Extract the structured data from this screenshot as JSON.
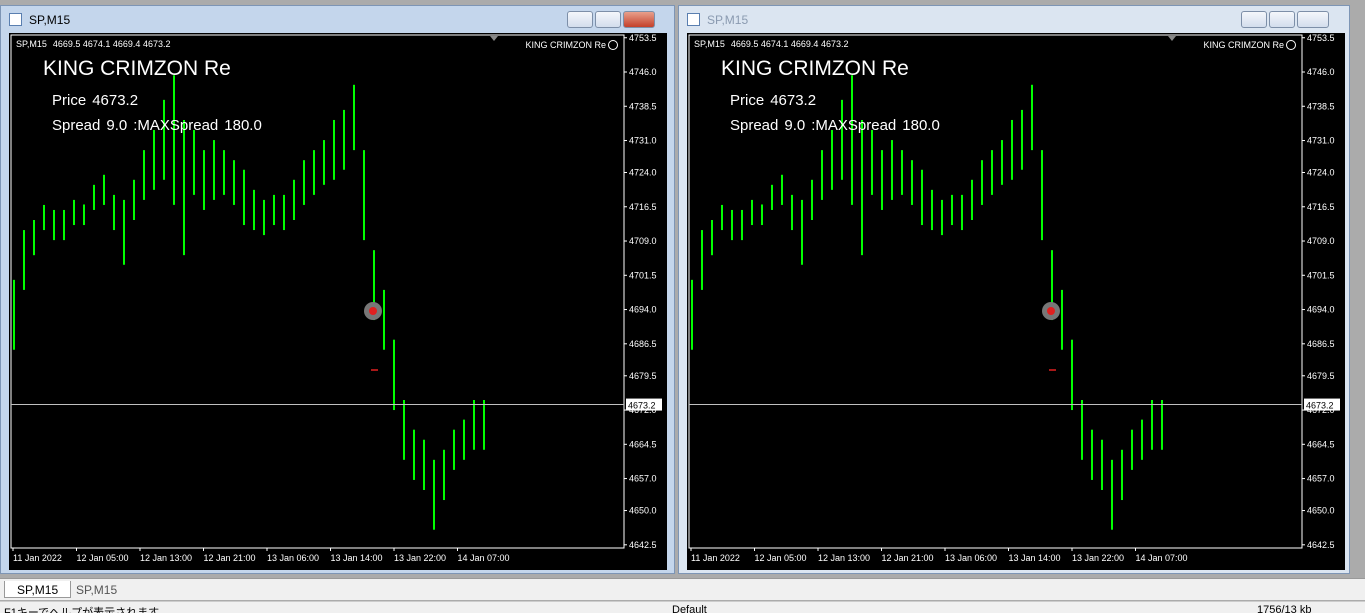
{
  "windows": [
    {
      "title": "SP,M15",
      "active": true
    },
    {
      "title": "SP,M15",
      "active": false
    }
  ],
  "chart": {
    "type": "bar",
    "symbol_label": "SP,M15",
    "ohlc_header": "4669.5 4674.1 4669.4 4673.2",
    "indicator": "KING CRIMZON Re",
    "heading": "KING CRIMZON Re",
    "price_label": "Price",
    "spread_label": "Spread",
    "spread_text": "9.0",
    "max_spread_label": ":MAXSpread",
    "max_spread_text": "180.0",
    "current_price": 4673.2,
    "color": "#00ff00",
    "ylim": [
      4641.8,
      4754.1
    ],
    "yticks": [
      {
        "value": 4753.5,
        "label": "4753.5"
      },
      {
        "value": 4746,
        "label": "4746.0"
      },
      {
        "value": 4738.5,
        "label": "4738.5"
      },
      {
        "value": 4731,
        "label": "4731.0"
      },
      {
        "value": 4724,
        "label": "4724.0"
      },
      {
        "value": 4716.5,
        "label": "4716.5"
      },
      {
        "value": 4709,
        "label": "4709.0"
      },
      {
        "value": 4701.5,
        "label": "4701.5"
      },
      {
        "value": 4694,
        "label": "4694.0"
      },
      {
        "value": 4686.5,
        "label": "4686.5"
      },
      {
        "value": 4679.5,
        "label": "4679.5"
      },
      {
        "value": 4672,
        "label": "4672.0"
      },
      {
        "value": 4664.5,
        "label": "4664.5"
      },
      {
        "value": 4657,
        "label": "4657.0"
      },
      {
        "value": 4650,
        "label": "4650.0"
      },
      {
        "value": 4642.5,
        "label": "4642.5"
      }
    ],
    "time_labels": [
      "11 Jan 2022",
      "12 Jan 05:00",
      "12 Jan 13:00",
      "12 Jan 21:00",
      "13 Jan 06:00",
      "13 Jan 14:00",
      "13 Jan 22:00",
      "14 Jan 07:00"
    ],
    "high": [
      4700.5,
      4711.4,
      4713.6,
      4716.9,
      4715.8,
      4715.8,
      4718.0,
      4717.0,
      4721.3,
      4723.5,
      4719.1,
      4718.0,
      4722.4,
      4728.9,
      4733.3,
      4739.9,
      4745.3,
      4735.5,
      4733.3,
      4728.9,
      4731.1,
      4728.9,
      4726.7,
      4724.6,
      4720.2,
      4718.0,
      4719.1,
      4719.1,
      4722.4,
      4726.7,
      4728.9,
      4731.1,
      4735.5,
      4737.7,
      4743.2,
      4728.9,
      4707.0,
      4698.3,
      4687.4,
      4674.2,
      4667.7,
      4665.5,
      4661.1,
      4663.3,
      4667.7,
      4669.9,
      4674.2,
      4674.2
    ],
    "low": [
      4685.2,
      4698.3,
      4705.9,
      4711.4,
      4709.2,
      4709.2,
      4712.5,
      4712.5,
      4715.8,
      4716.9,
      4711.4,
      4703.8,
      4713.6,
      4718.0,
      4720.2,
      4722.4,
      4716.9,
      4705.9,
      4719.1,
      4715.8,
      4718.0,
      4719.1,
      4716.9,
      4712.5,
      4711.4,
      4710.3,
      4712.5,
      4711.4,
      4713.6,
      4716.9,
      4719.1,
      4721.3,
      4722.4,
      4724.6,
      4728.9,
      4709.2,
      4691.7,
      4685.2,
      4672.0,
      4661.1,
      4656.7,
      4654.5,
      4645.8,
      4652.3,
      4658.9,
      4661.1,
      4663.3,
      4663.3
    ]
  },
  "tabs": [
    "SP,M15",
    "SP,M15"
  ],
  "status": {
    "help": "F1キーでヘルプが表示されます",
    "profile": "Default",
    "traffic": "1756/13 kb"
  }
}
